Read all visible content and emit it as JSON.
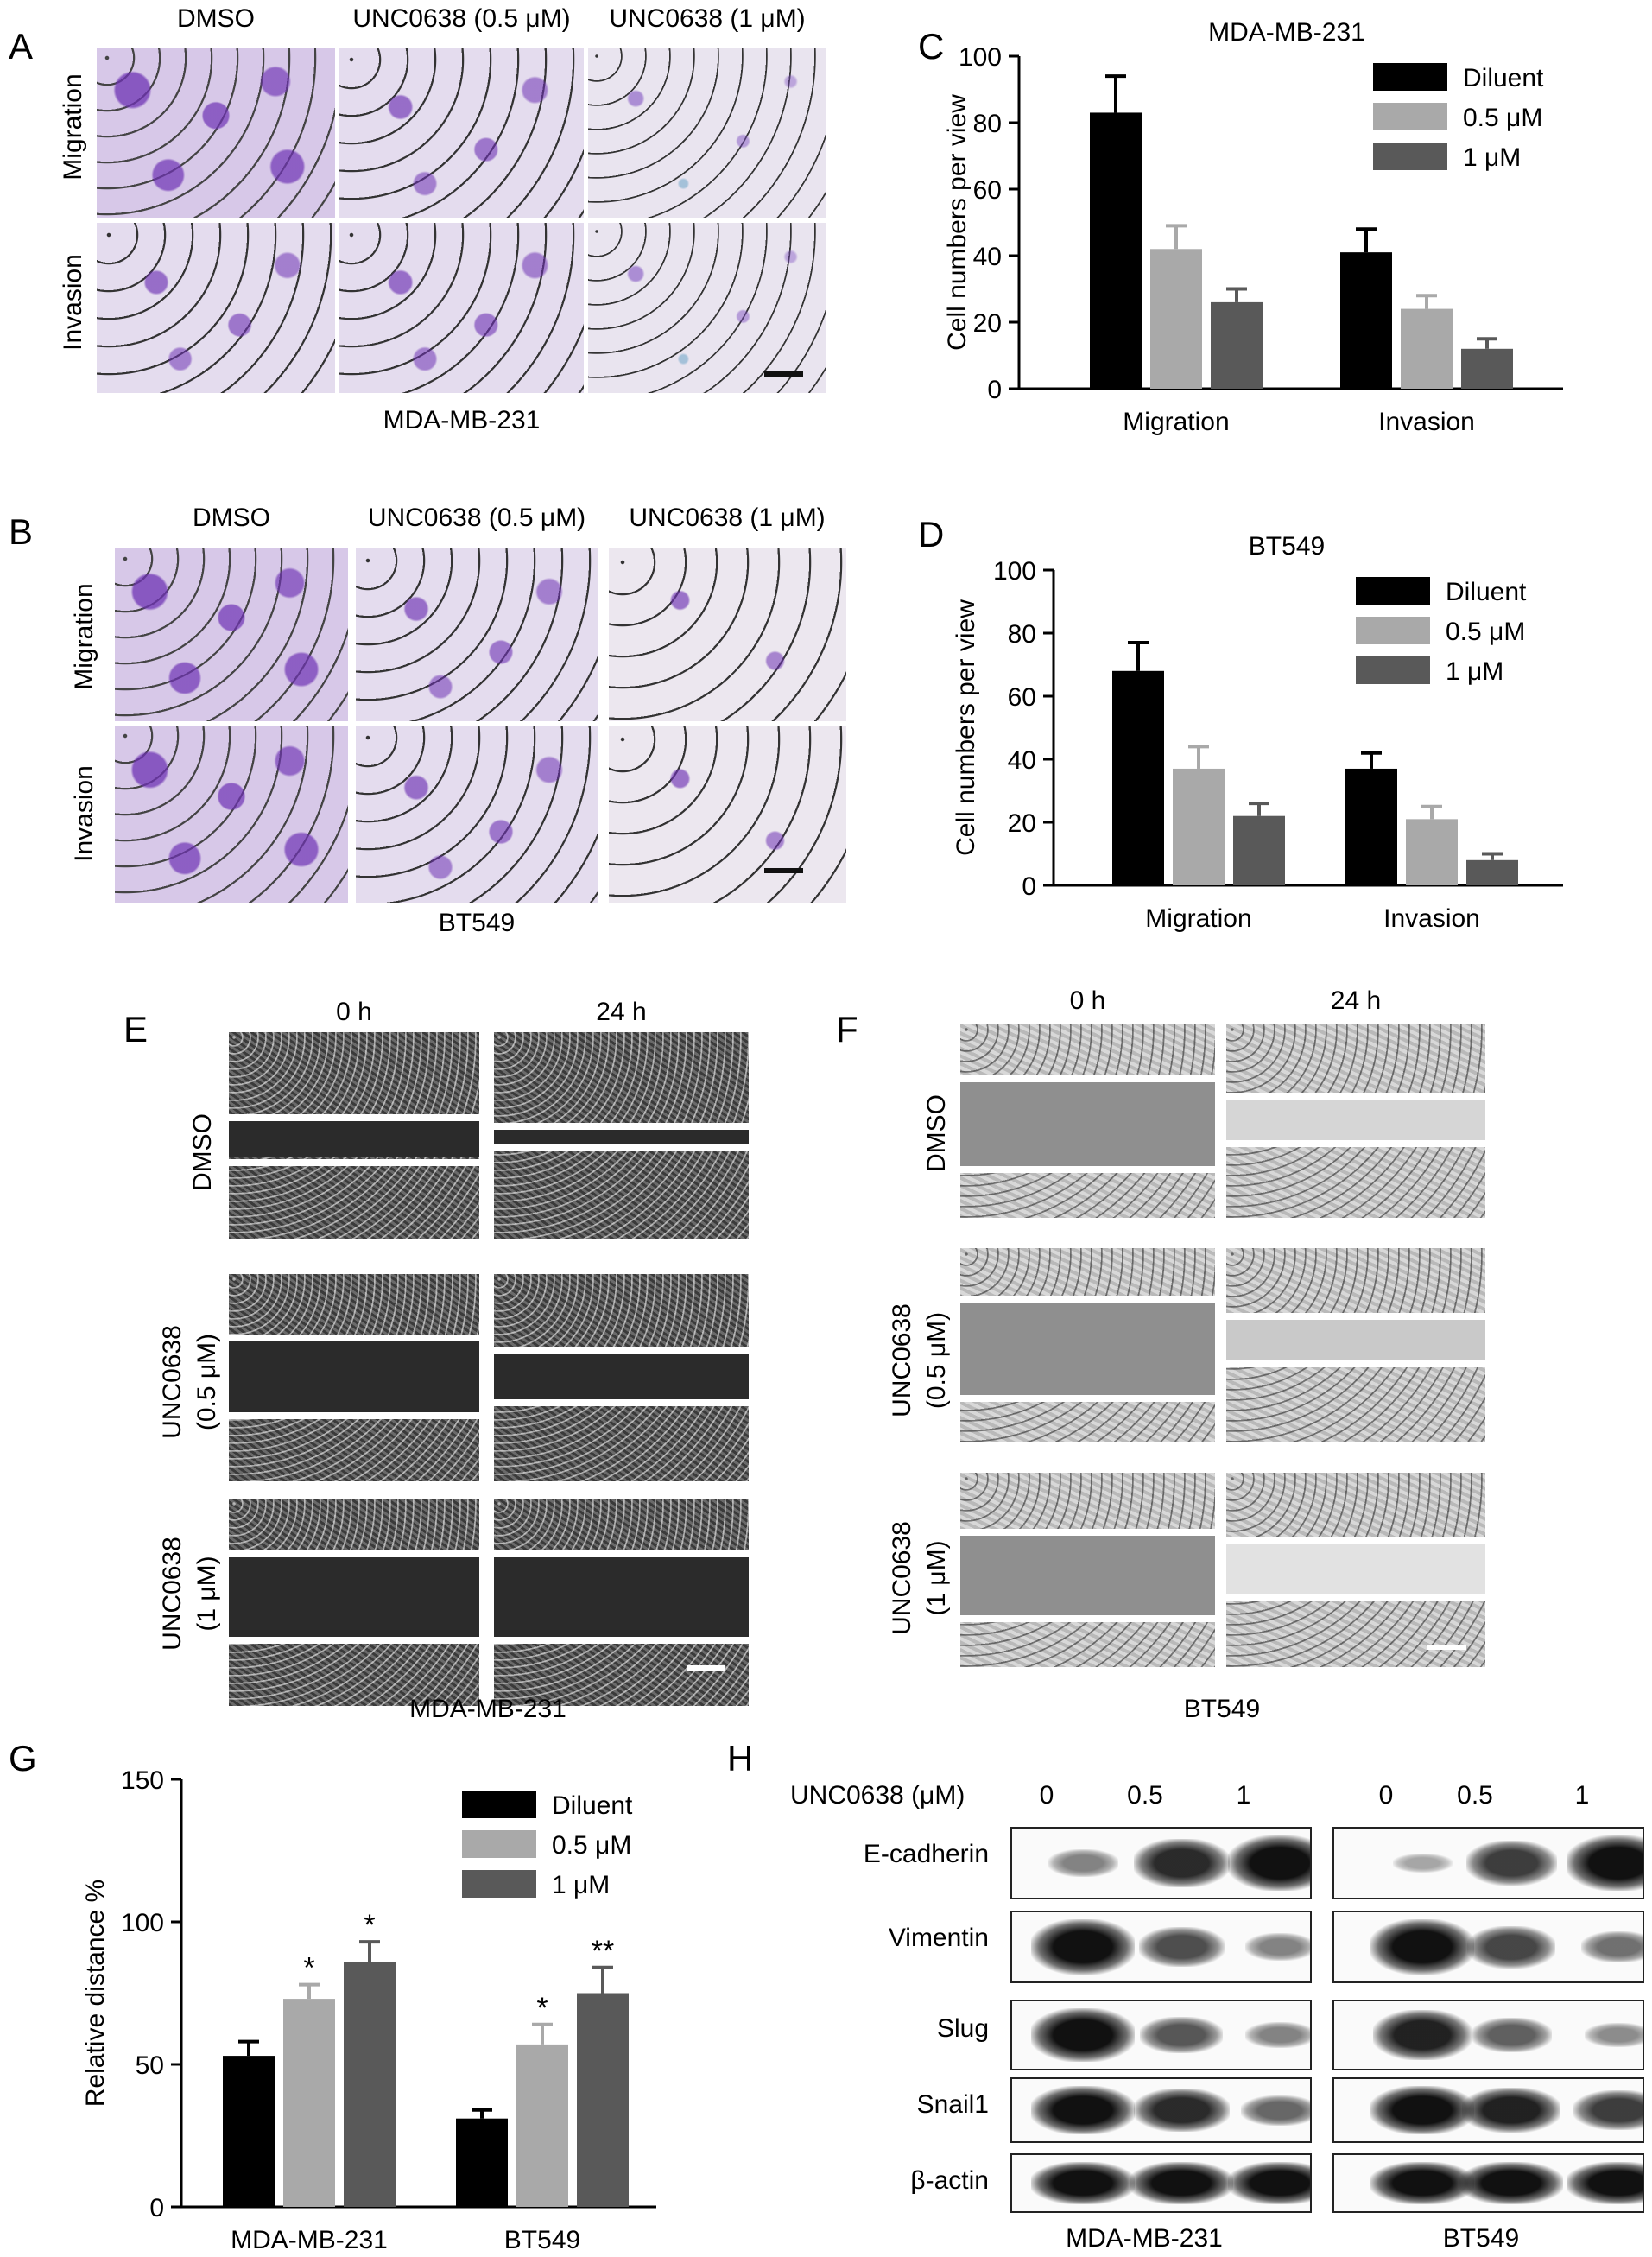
{
  "panels": {
    "A": {
      "label": "A",
      "columns": [
        "DMSO",
        "UNC0638 (0.5 μM)",
        "UNC0638 (1 μM)"
      ],
      "rows": [
        "Migration",
        "Invasion"
      ],
      "caption": "MDA-MB-231"
    },
    "B": {
      "label": "B",
      "columns": [
        "DMSO",
        "UNC0638 (0.5 μM)",
        "UNC0638 (1 μM)"
      ],
      "rows": [
        "Migration",
        "Invasion"
      ],
      "caption": "BT549"
    },
    "E": {
      "label": "E",
      "columns": [
        "0 h",
        "24 h"
      ],
      "rows": [
        {
          "line1": "DMSO",
          "line2": ""
        },
        {
          "line1": "UNC0638",
          "line2": "(0.5 μM)"
        },
        {
          "line1": "UNC0638",
          "line2": "(1 μM)"
        }
      ],
      "caption": "MDA-MB-231"
    },
    "F": {
      "label": "F",
      "columns": [
        "0 h",
        "24 h"
      ],
      "rows": [
        {
          "line1": "DMSO",
          "line2": ""
        },
        {
          "line1": "UNC0638",
          "line2": "(0.5 μM)"
        },
        {
          "line1": "UNC0638",
          "line2": "(1 μM)"
        }
      ],
      "caption": "BT549"
    },
    "H": {
      "label": "H",
      "header_label": "UNC0638 (μM)",
      "concentrations": [
        "0",
        "0.5",
        "1"
      ],
      "proteins": [
        "E-cadherin",
        "Vimentin",
        "Slug",
        "Snail1",
        "β-actin"
      ],
      "cell_lines": [
        "MDA-MB-231",
        "BT549"
      ],
      "band_intensity": {
        "MDA-MB-231": {
          "E-cadherin": [
            0.35,
            0.85,
            1.0
          ],
          "Vimentin": [
            1.0,
            0.65,
            0.35
          ],
          "Slug": [
            1.0,
            0.6,
            0.35
          ],
          "Snail1": [
            1.0,
            0.85,
            0.5
          ],
          "β-actin": [
            1.0,
            1.0,
            1.0
          ]
        },
        "BT549": {
          "E-cadherin": [
            0.15,
            0.75,
            1.0
          ],
          "Vimentin": [
            1.0,
            0.7,
            0.45
          ],
          "Slug": [
            0.9,
            0.55,
            0.3
          ],
          "Snail1": [
            1.0,
            0.9,
            0.75
          ],
          "β-actin": [
            1.0,
            1.0,
            1.0
          ]
        }
      }
    }
  },
  "colors": {
    "diluent": "#000000",
    "c05": "#a9a9a9",
    "c1": "#595959"
  },
  "chart_data": [
    {
      "panel": "C",
      "type": "bar",
      "title": "MDA-MB-231",
      "xlabel": "",
      "ylabel": "Cell numbers per view",
      "ylim": [
        0,
        100
      ],
      "yticks": [
        0,
        20,
        40,
        60,
        80,
        100
      ],
      "categories": [
        "Migration",
        "Invasion"
      ],
      "series": [
        {
          "name": "Diluent",
          "values": [
            83,
            41
          ],
          "errors": [
            11,
            7
          ],
          "color": "#000000"
        },
        {
          "name": "0.5 μM",
          "values": [
            42,
            24
          ],
          "errors": [
            7,
            4
          ],
          "color": "#a9a9a9"
        },
        {
          "name": "1 μM",
          "values": [
            26,
            12
          ],
          "errors": [
            4,
            3
          ],
          "color": "#595959"
        }
      ],
      "legend": "top-right",
      "annotations": []
    },
    {
      "panel": "D",
      "type": "bar",
      "title": "BT549",
      "xlabel": "",
      "ylabel": "Cell numbers per view",
      "ylim": [
        0,
        100
      ],
      "yticks": [
        0,
        20,
        40,
        60,
        80,
        100
      ],
      "categories": [
        "Migration",
        "Invasion"
      ],
      "series": [
        {
          "name": "Diluent",
          "values": [
            68,
            37
          ],
          "errors": [
            9,
            5
          ],
          "color": "#000000"
        },
        {
          "name": "0.5 μM",
          "values": [
            37,
            21
          ],
          "errors": [
            7,
            4
          ],
          "color": "#a9a9a9"
        },
        {
          "name": "1 μM",
          "values": [
            22,
            8
          ],
          "errors": [
            4,
            2
          ],
          "color": "#595959"
        }
      ],
      "legend": "top-right",
      "annotations": []
    },
    {
      "panel": "G",
      "type": "bar",
      "title": "",
      "xlabel": "",
      "ylabel": "Relative distance %",
      "ylim": [
        0,
        150
      ],
      "yticks": [
        0,
        50,
        100,
        150
      ],
      "categories": [
        "MDA-MB-231",
        "BT549"
      ],
      "series": [
        {
          "name": "Diluent",
          "values": [
            53,
            31
          ],
          "errors": [
            5,
            3
          ],
          "marks": [
            "",
            ""
          ],
          "color": "#000000"
        },
        {
          "name": "0.5 μM",
          "values": [
            73,
            57
          ],
          "errors": [
            5,
            7
          ],
          "marks": [
            "*",
            "*"
          ],
          "color": "#a9a9a9"
        },
        {
          "name": "1 μM",
          "values": [
            86,
            75
          ],
          "errors": [
            7,
            9
          ],
          "marks": [
            "*",
            "**"
          ],
          "color": "#595959"
        }
      ],
      "legend": "top-right"
    }
  ]
}
